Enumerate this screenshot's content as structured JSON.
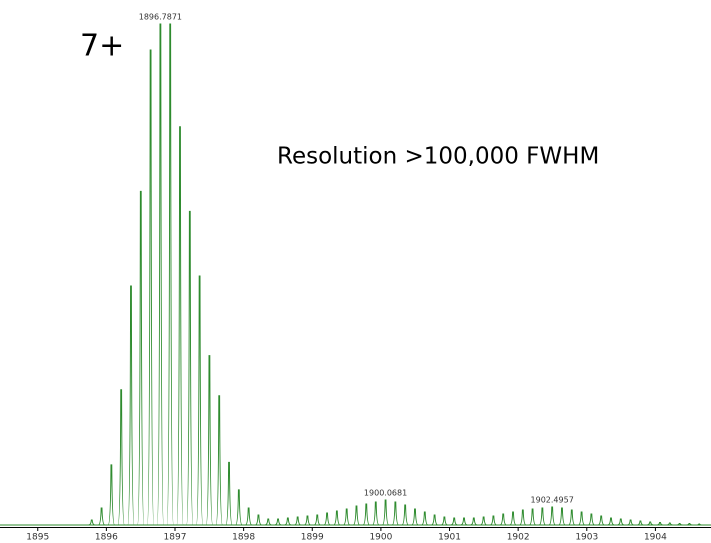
{
  "chart_data": {
    "type": "spectrum",
    "annotations": [
      "7+",
      "Resolution >100,000 FWHM"
    ],
    "peak_labels": [
      1896.7871,
      1900.0681,
      1902.4957
    ],
    "color": "#2e8b2e",
    "x": [
      1895.7871,
      1895.93,
      1896.0728,
      1896.2157,
      1896.3585,
      1896.5014,
      1896.6442,
      1896.7871,
      1896.93,
      1897.0728,
      1897.2157,
      1897.3585,
      1897.5014,
      1897.6442,
      1897.7871,
      1897.93,
      1898.0728,
      1898.2157,
      1898.3585,
      1898.5014,
      1898.6442,
      1898.7871,
      1898.93,
      1899.0728,
      1899.2157,
      1899.3585,
      1899.5014,
      1899.6442,
      1899.7871,
      1899.9252,
      1900.0681,
      1900.211,
      1900.3538,
      1900.4967,
      1900.6395,
      1900.7824,
      1900.9252,
      1901.0681,
      1901.211,
      1901.3538,
      1901.4967,
      1901.6395,
      1901.7824,
      1901.9252,
      1902.0681,
      1902.21,
      1902.3528,
      1902.4957,
      1902.6385,
      1902.7814,
      1902.9242,
      1903.0671,
      1903.21,
      1903.3528,
      1903.4957,
      1903.6385,
      1903.7814,
      1903.9242,
      1904.0671,
      1904.21,
      1904.3528,
      1904.4957,
      1904.6385
    ],
    "values": [
      1,
      3.4,
      12,
      27,
      47.7,
      66.6,
      94.8,
      100,
      100,
      79.5,
      62.6,
      49.7,
      33.8,
      25.8,
      12.5,
      7,
      3.4,
      2,
      1.2,
      1.2,
      1.4,
      1.6,
      1.8,
      2,
      2.4,
      2.8,
      3.2,
      3.8,
      4.2,
      4.6,
      5,
      4.6,
      4,
      3.2,
      2.6,
      2,
      1.6,
      1.4,
      1.4,
      1.4,
      1.6,
      1.8,
      2.2,
      2.6,
      3,
      3.2,
      3.4,
      3.6,
      3.4,
      3,
      2.6,
      2.2,
      1.8,
      1.4,
      1.2,
      1,
      0.8,
      0.6,
      0.5,
      0.4,
      0.3,
      0.3,
      0.2
    ],
    "xlim": [
      1894.45,
      1904.81
    ],
    "xticks": [
      1895,
      1896,
      1897,
      1898,
      1899,
      1900,
      1901,
      1902,
      1903,
      1904
    ],
    "ylim": [
      0,
      100
    ]
  }
}
